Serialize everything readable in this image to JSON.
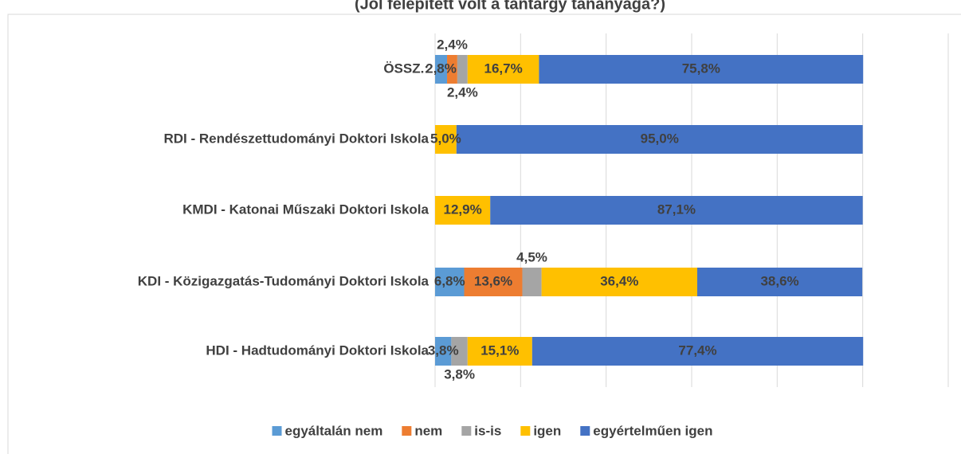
{
  "chart_data": {
    "type": "stacked_bar_horizontal",
    "title": "(Jól felépített volt a tantárgy tananyaga?)",
    "categories": [
      "ÖSSZ.:",
      "RDI - Rendészettudományi Doktori Iskola",
      "KMDI - Katonai Műszaki Doktori Iskola",
      "KDI - Közigazgatás-Tudományi Doktori Iskola",
      "HDI - Hadtudományi Doktori Iskola"
    ],
    "series": [
      {
        "name": "egyáltalán nem",
        "color": "#5b9bd5",
        "values": [
          2.8,
          0,
          0,
          6.8,
          3.8
        ],
        "value_labels": [
          "2,8%",
          null,
          null,
          "6,8%",
          "3,8%"
        ]
      },
      {
        "name": "nem",
        "color": "#ed7d31",
        "values": [
          2.4,
          0,
          0,
          13.6,
          0
        ],
        "value_labels": [
          "2,4%",
          null,
          null,
          "13,6%",
          null
        ]
      },
      {
        "name": "is-is",
        "color": "#a5a5a5",
        "values": [
          2.4,
          0,
          0,
          4.5,
          3.8
        ],
        "value_labels": [
          "2,4%",
          null,
          null,
          "4,5%",
          "3,8%"
        ]
      },
      {
        "name": "igen",
        "color": "#ffc000",
        "values": [
          16.7,
          5.0,
          12.9,
          36.4,
          15.1
        ],
        "value_labels": [
          "16,7%",
          "5,0%",
          "12,9%",
          "36,4%",
          "15,1%"
        ]
      },
      {
        "name": "egyértelműen igen",
        "color": "#4472c4",
        "values": [
          75.8,
          95.0,
          87.1,
          38.6,
          77.4
        ],
        "value_labels": [
          "75,8%",
          "95,0%",
          "87,1%",
          "38,6%",
          "77,4%"
        ]
      }
    ],
    "xlim": [
      0,
      120
    ],
    "xticks": [
      0,
      20,
      40,
      60,
      80,
      100,
      120
    ],
    "grid": true,
    "legend": "bottom"
  }
}
